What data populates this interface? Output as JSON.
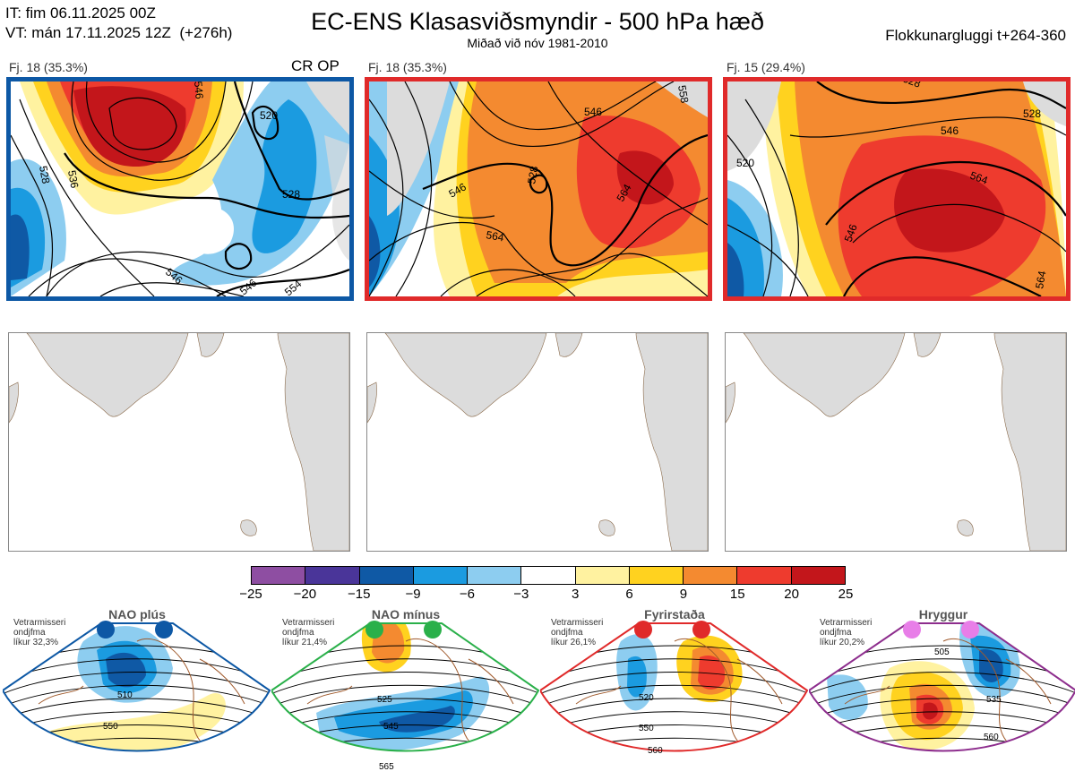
{
  "header": {
    "it_line": "IT: fim 06.11.2025 00Z",
    "vt_line": "VT: mán 17.11.2025 12Z  (+276h)",
    "title": "EC-ENS Klasasviðsmyndir - 500 hPa hæð",
    "subtitle": "Miðað við nóv 1981-2010",
    "window": "Flokkunargluggi t+264-360"
  },
  "panels": [
    {
      "label": "Fj. 18 (35.3%)",
      "tag": "CR OP",
      "frame_color": "#0d58a5",
      "contours": [
        "520",
        "528",
        "536",
        "546",
        "528",
        "546",
        "546",
        "554"
      ]
    },
    {
      "label": "Fj. 18 (35.3%)",
      "tag": "",
      "frame_color": "#e02a2a",
      "contours": [
        "528",
        "546",
        "546",
        "564",
        "564",
        "558"
      ]
    },
    {
      "label": "Fj. 15 (29.4%)",
      "tag": "",
      "frame_color": "#e02a2a",
      "contours": [
        "520",
        "528",
        "546",
        "564",
        "546",
        "564",
        "528"
      ]
    }
  ],
  "colorbar": {
    "ticks": [
      "−25",
      "−20",
      "−15",
      "−9",
      "−6",
      "−3",
      "3",
      "6",
      "9",
      "15",
      "20",
      "25"
    ],
    "colors": [
      "#8e4ea2",
      "#4a3599",
      "#0f59a5",
      "#1b9be0",
      "#8dcdf0",
      "#ffffff",
      "#fff2a0",
      "#ffd21f",
      "#f48a30",
      "#ee3b2e",
      "#c3161b"
    ]
  },
  "regimes": [
    {
      "name": "NAO plús",
      "note1": "Vetrarmisseri",
      "note2": "ondjfma",
      "note3": "líkur 32,3%",
      "color": "#0d58a5",
      "dot": "#0d58a5",
      "contours": [
        "510",
        "550"
      ]
    },
    {
      "name": "NAO mínus",
      "note1": "Vetrarmisseri",
      "note2": "ondjfma",
      "note3": "líkur 21,4%",
      "color": "#2ab04a",
      "dot": "#2ab04a",
      "contours": [
        "525",
        "545",
        "565"
      ]
    },
    {
      "name": "Fyrirstaða",
      "note1": "Vetrarmisseri",
      "note2": "ondjfma",
      "note3": "líkur 26,1%",
      "color": "#e02a2a",
      "dot": "#e02a2a",
      "contours": [
        "520",
        "550",
        "560"
      ]
    },
    {
      "name": "Hryggur",
      "note1": "Vetrarmisseri",
      "note2": "ondjfma",
      "note3": "líkur 20,2%",
      "color": "#8d2d8d",
      "dot": "#e87ee8",
      "contours": [
        "505",
        "535",
        "560"
      ]
    }
  ],
  "chart_data": {
    "type": "heatmap",
    "title": "EC-ENS Klasasviðsmyndir - 500 hPa hæð",
    "subtitle": "Miðað við nóv 1981-2010",
    "variable": "500 hPa height anomaly (dam) with height contours",
    "colorbar_range": [
      -25,
      25
    ],
    "colorbar_ticks": [
      -25,
      -20,
      -15,
      -9,
      -6,
      -3,
      3,
      6,
      9,
      15,
      20,
      25
    ],
    "clusters": [
      {
        "label": "Fj. 18 (35.3%)",
        "members": 18,
        "percent": 35.3,
        "tag": "CR OP"
      },
      {
        "label": "Fj. 18 (35.3%)",
        "members": 18,
        "percent": 35.3
      },
      {
        "label": "Fj. 15 (29.4%)",
        "members": 15,
        "percent": 29.4
      }
    ],
    "regimes": [
      {
        "name": "NAO plús",
        "probability_percent": 32.3
      },
      {
        "name": "NAO mínus",
        "probability_percent": 21.4
      },
      {
        "name": "Fyrirstaða",
        "probability_percent": 26.1
      },
      {
        "name": "Hryggur",
        "probability_percent": 20.2
      }
    ]
  }
}
